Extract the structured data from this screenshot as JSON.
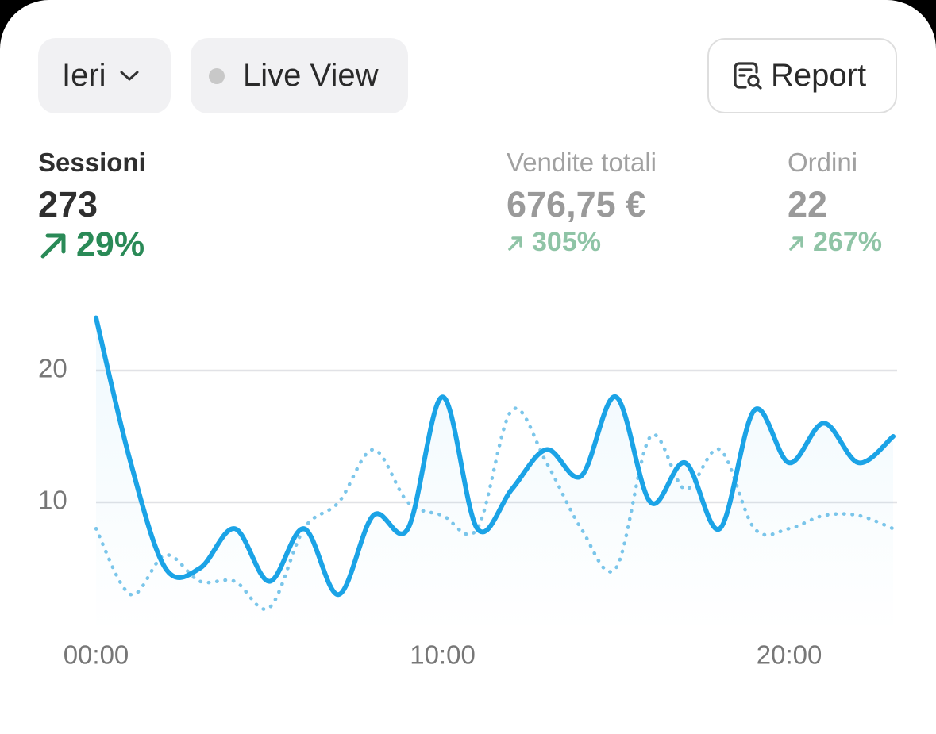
{
  "controls": {
    "date_range": "Ieri",
    "live_view": "Live View",
    "report": "Report"
  },
  "metrics": [
    {
      "label": "Sessioni",
      "value": "273",
      "change": "29%"
    },
    {
      "label": "Vendite totali",
      "value": "676,75 €",
      "change": "305%"
    },
    {
      "label": "Ordini",
      "value": "22",
      "change": "267%"
    }
  ],
  "chart_data": {
    "type": "line",
    "x": [
      0,
      1,
      2,
      3,
      4,
      5,
      6,
      7,
      8,
      9,
      10,
      11,
      12,
      13,
      14,
      15,
      16,
      17,
      18,
      19,
      20,
      21,
      22,
      23
    ],
    "xlim": [
      0,
      23
    ],
    "xticks": [
      {
        "value": 0,
        "label": "00:00"
      },
      {
        "value": 10,
        "label": "10:00"
      },
      {
        "value": 20,
        "label": "20:00"
      }
    ],
    "ylim": [
      0,
      25
    ],
    "yticks": [
      10,
      20
    ],
    "grid": true,
    "series": [
      {
        "color": "#1ba3e6",
        "style": "solid",
        "area": true,
        "values": [
          24,
          13,
          5,
          5,
          8,
          4,
          8,
          3,
          9,
          8,
          18,
          8,
          11,
          14,
          12,
          18,
          10,
          13,
          8,
          17,
          13,
          16,
          13,
          15
        ]
      },
      {
        "color": "#7cc6ea",
        "style": "dotted",
        "values": [
          8,
          3,
          6,
          4,
          4,
          2,
          8,
          10,
          14,
          10,
          9,
          8,
          17,
          13,
          8,
          5,
          15,
          11,
          14,
          8,
          8,
          9,
          9,
          8
        ]
      }
    ]
  }
}
